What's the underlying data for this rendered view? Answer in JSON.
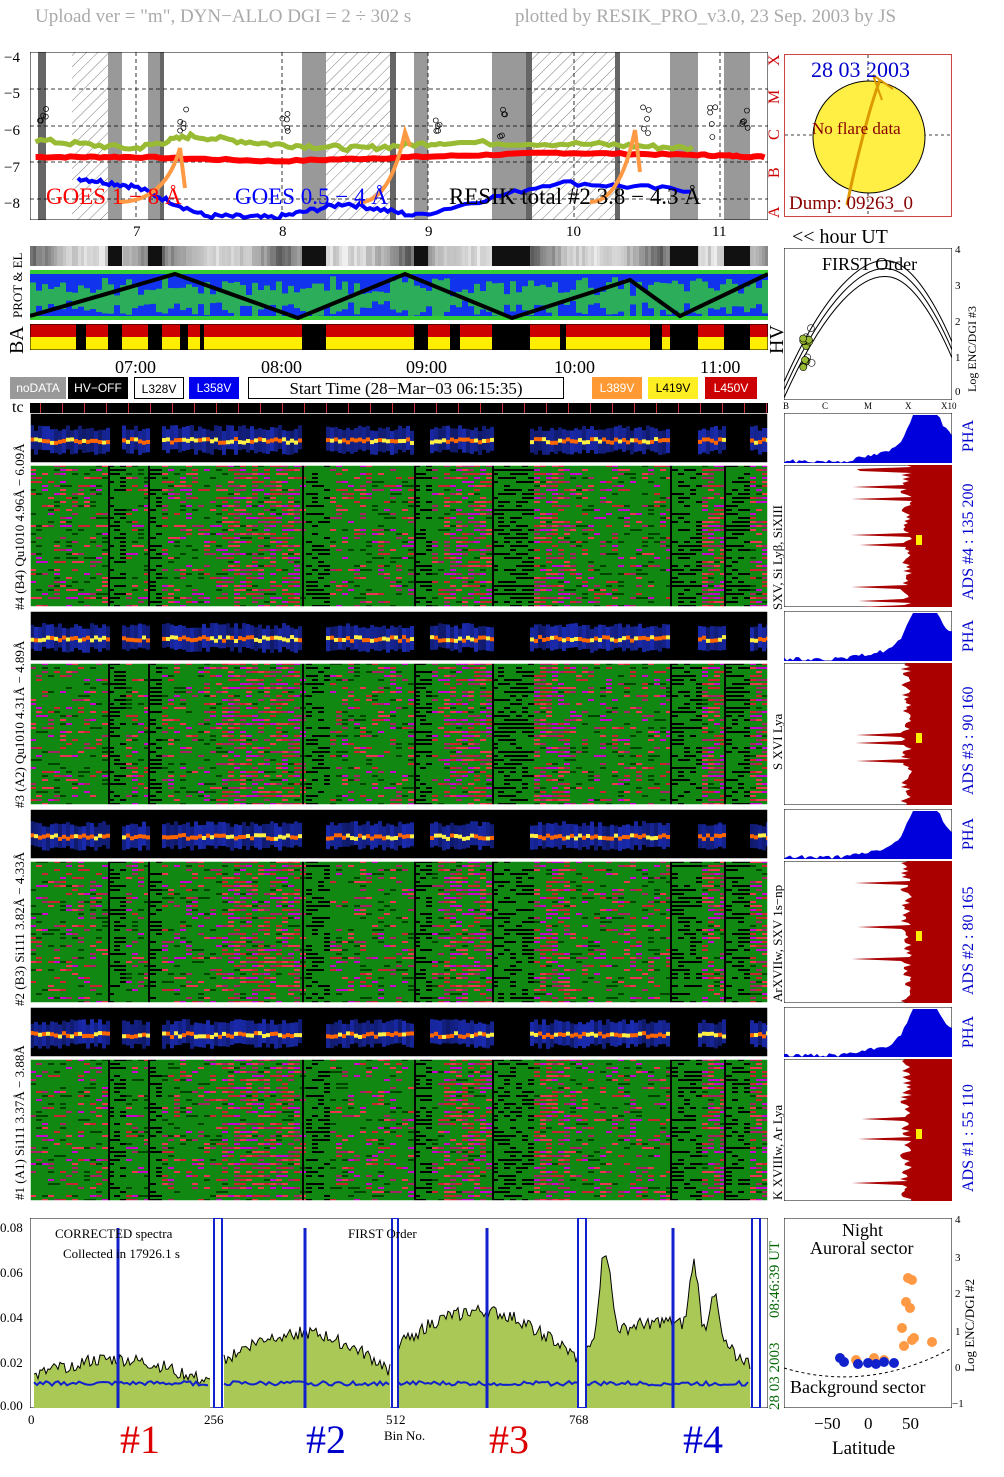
{
  "header": {
    "left": "Upload ver = \"m\", DYN−ALLO DGI =   2 ÷ 302 s",
    "right": "plotted by RESIK_PRO_v3.0, 23 Sep. 2003 by JS"
  },
  "lightcurve": {
    "yticks": [
      "−4",
      "−5",
      "−6",
      "−7",
      "−8"
    ],
    "goes_classes": [
      "X",
      "M",
      "C",
      "B",
      "A"
    ],
    "hour_ticks": [
      "7",
      "8",
      "9",
      "10",
      "11"
    ],
    "hour_unit": "<< hour UT",
    "legend_goes18": "GOES 1 − 8 Å",
    "legend_goes054": "GOES 0.5 − 4 Å",
    "legend_resik": "RESIK total #2  3.8 − 4.3 Å",
    "colors": {
      "goes18": "#ff0000",
      "goes054": "#0000ff",
      "resik": "#99bb33",
      "orange": "#ff9944",
      "shade": "#999999"
    }
  },
  "sun": {
    "date": "28 03 2003",
    "msg": "No flare data",
    "dump": "Dump: 09263_0"
  },
  "strips": {
    "prot_label": "PROT  & EL",
    "ba_label": "BA",
    "hv_label": "HV",
    "time_ticks": [
      "07:00",
      "08:00",
      "09:00",
      "10:00",
      "11:00"
    ]
  },
  "legend": {
    "nodata": "noDATA",
    "hvoff": "HV−OFF",
    "l328": "L328V",
    "l358": "L358V",
    "start_time": "Start Time (28−Mar−03 06:15:35)",
    "l389": "L389V",
    "l419": "L419V",
    "l450": "L450V"
  },
  "first_order": {
    "title": "FIRST Order",
    "ylabel": "Log ENC/DGI #3",
    "yticks": [
      "4",
      "3",
      "2",
      "1",
      "0"
    ],
    "xticks": [
      "B",
      "C",
      "M",
      "X",
      "X10"
    ]
  },
  "tc_label": "tc",
  "channels": [
    {
      "pha_label": "#4 (B4) Qu1010 4.96Å − 6.09Å",
      "lines": "SXV, Si Lyβ, SiXIII",
      "ads": "ADS #4 :   135 200",
      "pha": "PHA"
    },
    {
      "pha_label": "#3 (A2) Qu1010 4.31Å − 4.89Å",
      "lines": "S XVI Lya",
      "ads": "ADS #3 :   90 160",
      "pha": "PHA"
    },
    {
      "pha_label": "#2 (B3) Si111 3.82Å − 4.33Å",
      "lines": "ArXVIIw, SXV 1s−np",
      "ads": "ADS #2 :   80 165",
      "pha": "PHA"
    },
    {
      "pha_label": "#1 (A1) Si111 3.37Å − 3.88Å",
      "lines": "K XVIIIw, Ar Lya",
      "ads": "ADS #1 :   55 110",
      "pha": "PHA"
    }
  ],
  "spectrum": {
    "note1": "CORRECTED spectra",
    "note2": "Collected in 17926.1 s",
    "note3": "FIRST Order",
    "yticks": [
      "0.08",
      "0.06",
      "0.04",
      "0.02",
      "0.00"
    ],
    "xticks": [
      "0",
      "256",
      "512",
      "768"
    ],
    "xlabel": "Bin No.",
    "time": "08:46:39 UT",
    "date": "28 03 2003",
    "crystals": [
      "#1",
      "#2",
      "#3",
      "#4"
    ],
    "crystal_colors": [
      "#dd0000",
      "#0000cc",
      "#dd0000",
      "#0000cc"
    ]
  },
  "latitude": {
    "top": "Night",
    "sector": "Auroral sector",
    "bottom": "Background sector",
    "xlabel": "Latitude",
    "ylabel": "Log ENC/DGI #2",
    "xticks": [
      "−50",
      "0",
      "50"
    ],
    "yticks": [
      "4",
      "3",
      "2",
      "1",
      "0",
      "−1"
    ]
  },
  "chart_data": {
    "type": "line",
    "title": "",
    "xlabel": "hour UT",
    "ylabel": "",
    "x_range": [
      6.26,
      11.5
    ],
    "y_range": [
      -8,
      -4
    ],
    "y_scale": "log",
    "series": [
      {
        "name": "GOES 1 − 8 Å",
        "x": [
          6.3,
          7.0,
          8.0,
          9.0,
          10.0,
          11.0,
          11.5
        ],
        "values": [
          -6.5,
          -6.5,
          -6.6,
          -6.5,
          -6.4,
          -6.45,
          -6.5
        ]
      },
      {
        "name": "GOES 0.5 − 4 Å",
        "x": [
          6.6,
          7.0,
          7.5,
          8.0,
          8.5,
          9.0,
          10.0,
          11.0
        ],
        "values": [
          -7.0,
          -7.2,
          -7.9,
          -7.95,
          -7.6,
          -7.9,
          -7.1,
          -7.3
        ]
      },
      {
        "name": "RESIK total #2  3.8 − 4.3 Å",
        "x": [
          6.3,
          7.0,
          7.4,
          8.0,
          8.6,
          9.2,
          10.3,
          11.0
        ],
        "values": [
          -6.1,
          -6.3,
          -6.0,
          -6.2,
          -6.3,
          -6.15,
          -6.2,
          -6.3
        ]
      }
    ]
  }
}
